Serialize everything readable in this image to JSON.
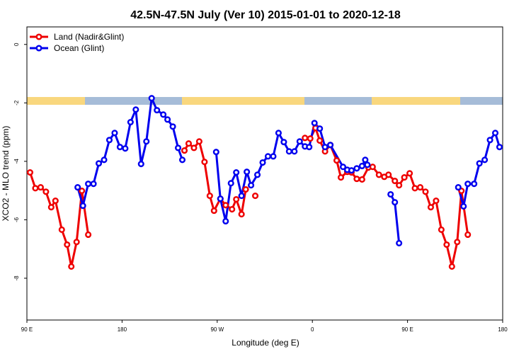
{
  "chart_data": {
    "type": "line",
    "title": "42.5N-47.5N July (Ver 10)   2015-01-01 to 2020-12-18",
    "x_label": "Longitude (deg E)",
    "y_label": "XCO2 - MLO trend (ppm)",
    "xlim": [
      90,
      540
    ],
    "xticks": [
      {
        "value": 90,
        "label": "90 E"
      },
      {
        "value": 180,
        "label": "180"
      },
      {
        "value": 270,
        "label": "90 W"
      },
      {
        "value": 360,
        "label": "0"
      },
      {
        "value": 450,
        "label": "90 E"
      },
      {
        "value": 540,
        "label": "180"
      }
    ],
    "ylim": [
      -9.43,
      0.6
    ],
    "yticks": [
      -8,
      -6,
      -4,
      -2,
      0
    ],
    "legend": "top-left",
    "series": [
      {
        "name": "Land (Nadir&Glint)",
        "color": "#ee0000",
        "x": [
          93,
          98,
          103,
          108,
          113,
          117,
          123,
          128,
          132,
          137,
          142,
          148,
          null,
          239,
          243,
          248,
          253,
          258,
          263,
          267,
          273,
          278,
          284,
          288,
          293,
          297,
          null,
          306,
          null,
          353,
          358,
          363,
          367,
          372,
          377,
          383,
          387,
          393,
          397,
          402,
          407,
          413,
          417,
          423,
          428,
          432,
          438,
          442,
          447,
          452,
          457,
          462,
          467,
          472,
          477,
          482,
          487,
          492,
          497,
          501,
          507
        ],
        "values": [
          -4.38,
          -4.92,
          -4.89,
          -5.04,
          -5.57,
          -5.35,
          -6.34,
          -6.85,
          -7.6,
          -6.76,
          -5.01,
          -6.51,
          null,
          -3.63,
          -3.39,
          -3.54,
          -3.32,
          -4.02,
          -5.18,
          -5.69,
          -5.28,
          -5.5,
          -5.64,
          -5.3,
          -5.81,
          -4.96,
          null,
          -5.18,
          null,
          -3.2,
          -3.22,
          -2.86,
          -3.29,
          -3.66,
          -3.44,
          -3.97,
          -4.55,
          -4.36,
          -4.38,
          -4.6,
          -4.62,
          -4.21,
          -4.19,
          -4.46,
          -4.53,
          -4.46,
          -4.67,
          -4.82,
          -4.55,
          -4.41,
          -4.92,
          -4.89,
          -5.04,
          -5.57,
          -5.35,
          -6.34,
          -6.85,
          -7.6,
          -6.76,
          -5.01,
          -6.51
        ]
      },
      {
        "name": "Ocean (Glint)",
        "color": "#0000ee",
        "x": [
          138,
          143,
          148,
          153,
          158,
          163,
          168,
          173,
          178,
          183,
          188,
          193,
          198,
          203,
          208,
          213,
          219,
          223,
          228,
          233,
          237,
          null,
          269,
          273,
          278,
          283,
          288,
          293,
          298,
          302,
          308,
          313,
          318,
          323,
          328,
          333,
          338,
          343,
          348,
          353,
          357,
          362,
          367,
          372,
          377,
          389,
          393,
          397,
          402,
          407,
          410,
          412,
          null,
          434,
          438,
          442,
          null,
          498,
          503,
          507,
          513,
          518,
          523,
          528,
          533,
          537
        ],
        "values": [
          -4.89,
          -5.52,
          -4.77,
          -4.77,
          -4.07,
          -3.95,
          -3.27,
          -3.03,
          -3.51,
          -3.56,
          -2.66,
          -2.23,
          -4.09,
          -3.32,
          -1.84,
          -2.25,
          -2.4,
          -2.57,
          -2.81,
          -3.54,
          -3.95,
          null,
          -3.68,
          -5.28,
          -6.05,
          -4.75,
          -4.38,
          -5.18,
          -4.36,
          -4.82,
          -4.46,
          -4.04,
          -3.83,
          -3.83,
          -3.03,
          -3.34,
          -3.66,
          -3.66,
          -3.32,
          -3.49,
          -3.51,
          -2.69,
          -2.88,
          -3.51,
          -3.44,
          -4.19,
          -4.29,
          -4.31,
          -4.24,
          -4.16,
          -3.95,
          -4.12,
          null,
          -5.13,
          -5.4,
          -6.8,
          null,
          -4.89,
          -5.54,
          -4.77,
          -4.77,
          -4.07,
          -3.95,
          -3.27,
          -3.03,
          -3.51
        ]
      }
    ]
  }
}
